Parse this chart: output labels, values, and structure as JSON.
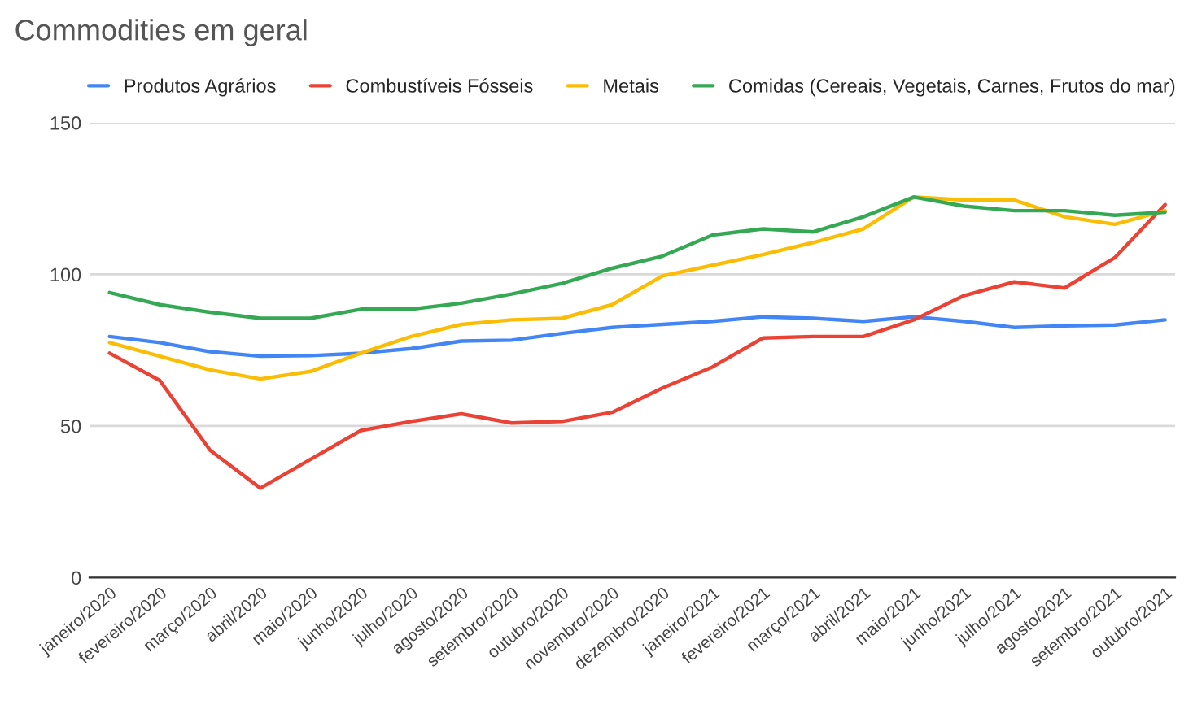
{
  "chart_data": {
    "type": "line",
    "title": "Commodities em geral",
    "categories": [
      "janeiro/2020",
      "fevereiro/2020",
      "março/2020",
      "abril/2020",
      "maio/2020",
      "junho/2020",
      "julho/2020",
      "agosto/2020",
      "setembro/2020",
      "outubro/2020",
      "novembro/2020",
      "dezembro/2020",
      "janeiro/2021",
      "fevereiro/2021",
      "março/2021",
      "abril/2021",
      "maio/2021",
      "junho/2021",
      "julho/2021",
      "agosto/2021",
      "setembro/2021",
      "outubro/2021"
    ],
    "series": [
      {
        "name": "Produtos Agrários",
        "color": "#4285f4",
        "values": [
          79.5,
          77.5,
          74.5,
          73,
          73.2,
          74,
          75.5,
          78,
          78.3,
          80.5,
          82.5,
          83.5,
          84.5,
          86,
          85.5,
          84.5,
          86,
          84.5,
          82.5,
          83,
          83.3,
          85
        ]
      },
      {
        "name": "Combustíveis Fósseis",
        "color": "#ea4335",
        "values": [
          74,
          65,
          42,
          29.5,
          39,
          48.5,
          51.5,
          54,
          51,
          51.5,
          54.5,
          62.5,
          69.5,
          79,
          79.5,
          79.5,
          85,
          93,
          97.5,
          95.5,
          105.5,
          123
        ]
      },
      {
        "name": "Metais",
        "color": "#fbbc04",
        "values": [
          77.5,
          73,
          68.5,
          65.5,
          68,
          74,
          79.5,
          83.5,
          85,
          85.5,
          90,
          99.5,
          103,
          106.5,
          110.5,
          115,
          125.5,
          124.5,
          124.5,
          119,
          116.5,
          121
        ]
      },
      {
        "name": "Comidas (Cereais, Vegetais, Carnes, Frutos do mar)",
        "color": "#34a853",
        "values": [
          94,
          90,
          87.5,
          85.5,
          85.5,
          88.5,
          88.5,
          90.5,
          93.5,
          97,
          102,
          106,
          113,
          115,
          114,
          119,
          125.5,
          122.5,
          121,
          121,
          119.5,
          120.5
        ]
      }
    ],
    "ylim": [
      0,
      150
    ],
    "yticks": [
      0,
      50,
      100,
      150
    ],
    "grid": "y",
    "legend": "top",
    "marker": "none",
    "line_style": "solid"
  }
}
